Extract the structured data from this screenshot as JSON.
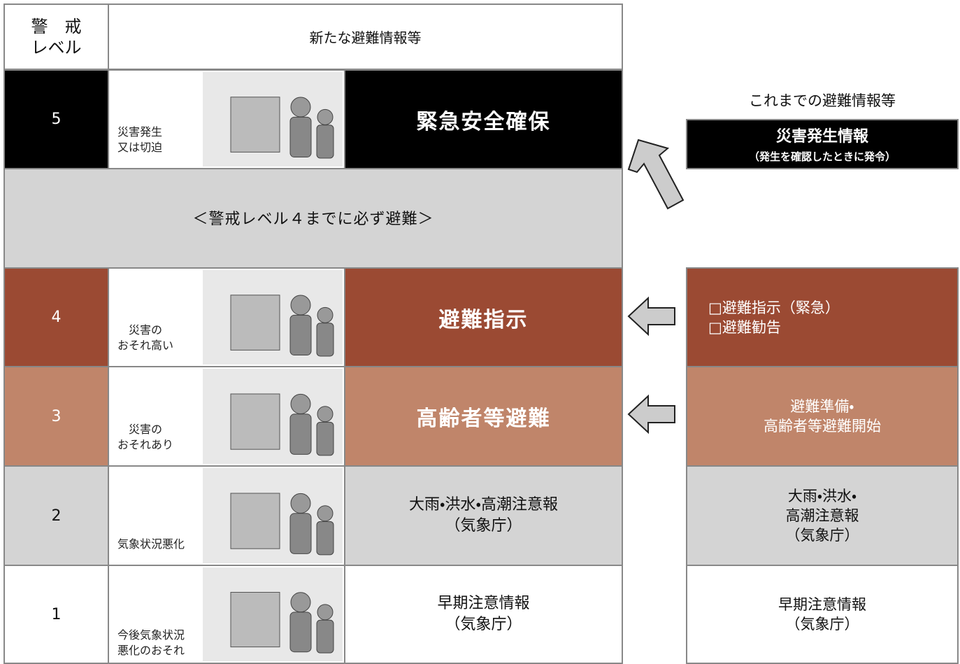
{
  "header": {
    "level_label": [
      "警　戒",
      "レベル"
    ],
    "title": "新たな避難情報等"
  },
  "levels": [
    {
      "level": "5",
      "caption": [
        "災害発生",
        "又は切迫"
      ],
      "action": [
        "緊急安全確保"
      ]
    },
    {
      "level": "4",
      "caption": [
        "災害の",
        "おそれ高い"
      ],
      "action": [
        "避難指示"
      ]
    },
    {
      "level": "3",
      "caption": [
        "災害の",
        "おそれあり"
      ],
      "action": [
        "高齢者等避難"
      ]
    },
    {
      "level": "2",
      "caption": [
        "気象状況悪化"
      ],
      "action": [
        "大雨・洪水・高潮注意報",
        "（気象庁）"
      ]
    },
    {
      "level": "1",
      "caption": [
        "今後気象状況",
        "悪化のおそれ"
      ],
      "action": [
        "早期注意情報",
        "（気象庁）"
      ]
    }
  ],
  "band": "＜警戒レベル４までに必ず避難＞",
  "previous": {
    "title": "これまでの避難情報等",
    "items": [
      [
        "災害発生情報",
        "（発生を確認したときに発令）"
      ],
      [
        "□避難指示（緊急）",
        "□避難勧告"
      ],
      [
        "避難準備・",
        "高齢者等避難開始"
      ],
      [
        "大雨・洪水・",
        "高潮注意報",
        "（気象庁）"
      ],
      [
        "早期注意情報",
        "（気象庁）"
      ]
    ]
  }
}
